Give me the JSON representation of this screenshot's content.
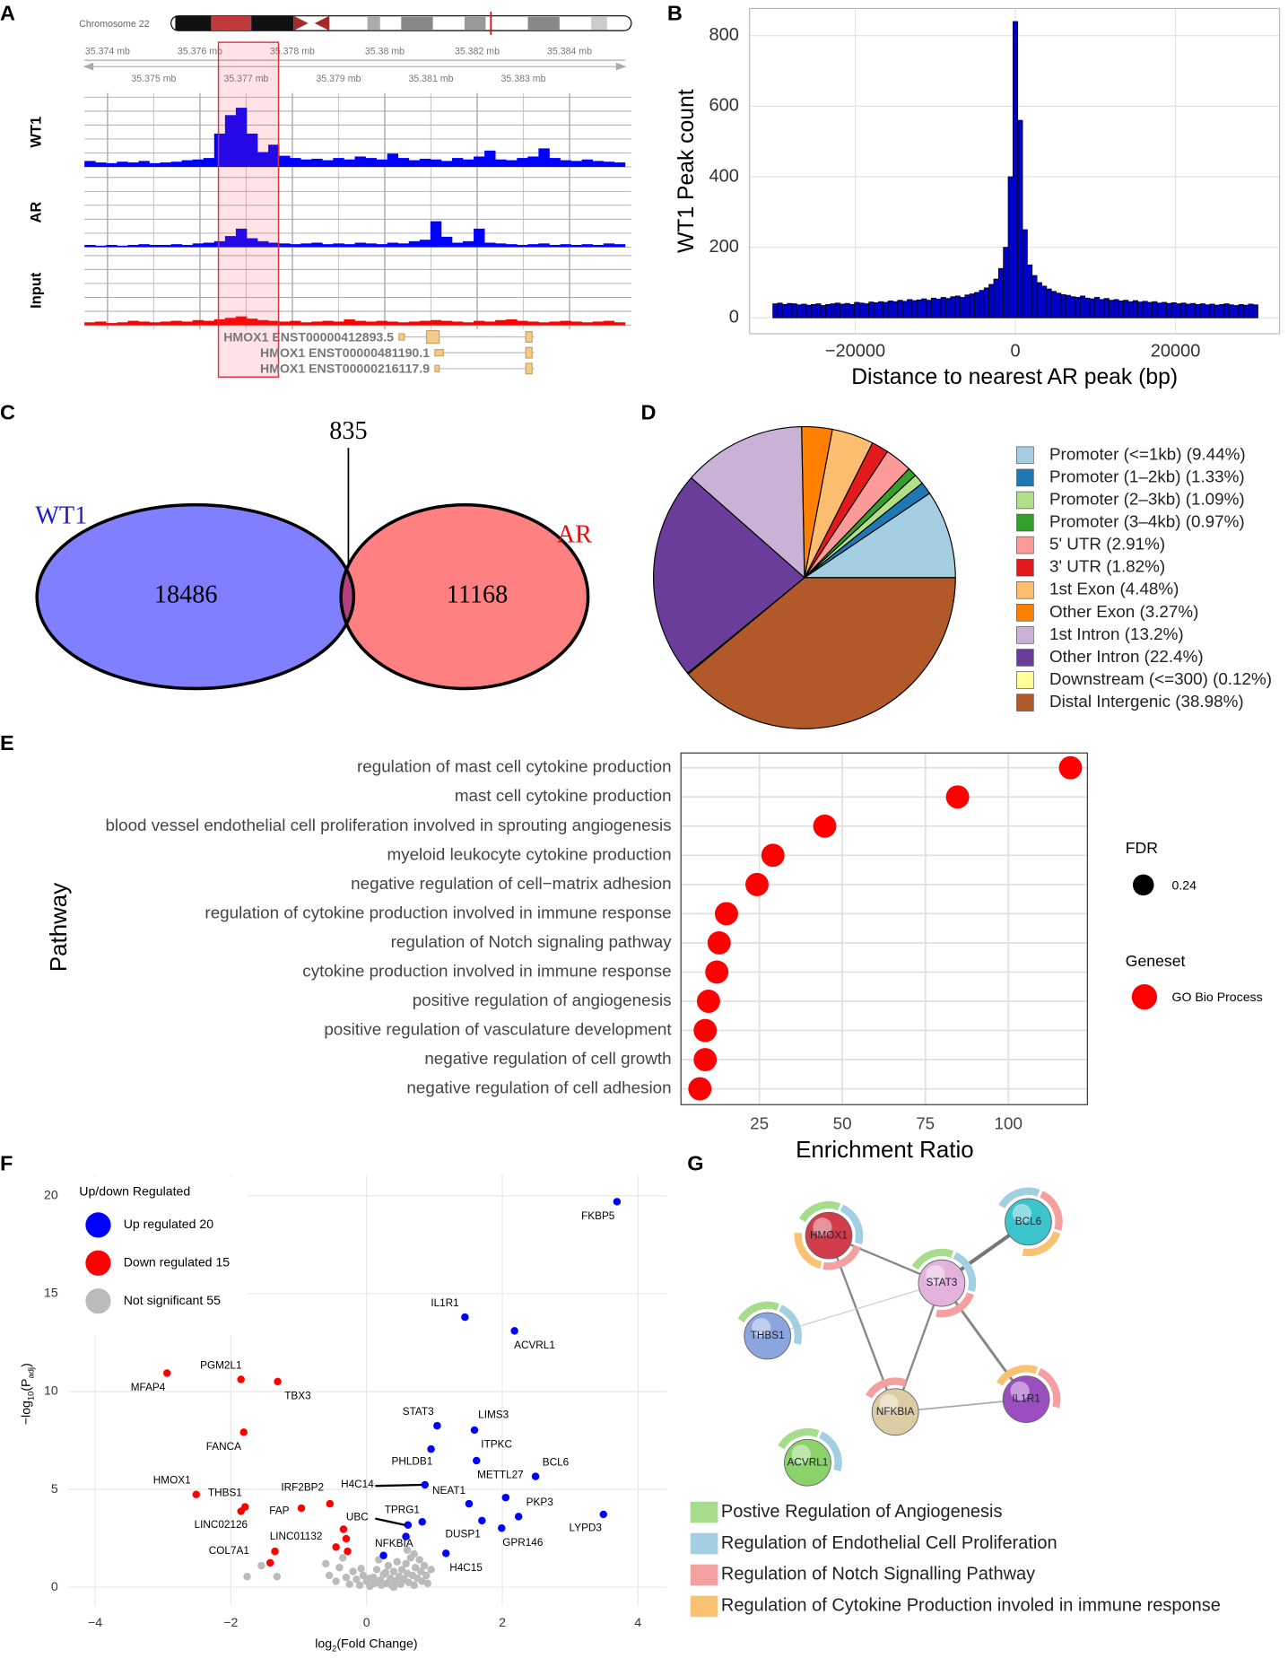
{
  "chart_data": [
    {
      "type": "genome_track",
      "panel_label": "A",
      "chromosome": "Chromosome 22",
      "xlim": [
        35.3735,
        35.3852
      ],
      "xticks": [
        {
          "value": 35.374,
          "label": "35.374 mb"
        },
        {
          "value": 35.376,
          "label": "35.376 mb"
        },
        {
          "value": 35.378,
          "label": "35.378 mb"
        },
        {
          "value": 35.38,
          "label": "35.38 mb"
        },
        {
          "value": 35.382,
          "label": "35.382 mb"
        },
        {
          "value": 35.384,
          "label": "35.384 mb"
        }
      ],
      "xticks_lower": [
        {
          "value": 35.375,
          "label": "35.375 mb"
        },
        {
          "value": 35.377,
          "label": "35.377 mb"
        },
        {
          "value": 35.379,
          "label": "35.379 mb"
        },
        {
          "value": 35.381,
          "label": "35.381 mb"
        },
        {
          "value": 35.383,
          "label": "35.383 mb"
        }
      ],
      "highlight": [
        35.3764,
        35.3777
      ],
      "ylim": [
        0,
        100
      ],
      "tracks": [
        {
          "name": "WT1",
          "color": "#0000ff",
          "values": [
            8,
            6,
            5,
            7,
            6,
            8,
            5,
            6,
            7,
            9,
            10,
            12,
            45,
            70,
            80,
            45,
            20,
            30,
            15,
            12,
            10,
            11,
            9,
            12,
            10,
            14,
            12,
            10,
            18,
            12,
            9,
            11,
            10,
            8,
            12,
            10,
            14,
            22,
            10,
            9,
            12,
            14,
            25,
            12,
            9,
            8,
            10,
            8,
            7,
            6
          ]
        },
        {
          "name": "AR",
          "color": "#0000ff",
          "values": [
            3,
            2,
            3,
            2,
            3,
            4,
            3,
            3,
            4,
            3,
            5,
            6,
            8,
            15,
            25,
            12,
            8,
            6,
            5,
            4,
            5,
            6,
            4,
            5,
            4,
            6,
            5,
            4,
            6,
            5,
            8,
            10,
            35,
            14,
            6,
            8,
            25,
            6,
            5,
            4,
            3,
            4,
            5,
            3,
            4,
            3,
            4,
            3,
            5,
            4
          ]
        },
        {
          "name": "Input",
          "color": "#ff0000",
          "values": [
            4,
            5,
            3,
            4,
            6,
            5,
            4,
            5,
            6,
            5,
            7,
            6,
            8,
            10,
            12,
            9,
            7,
            6,
            5,
            6,
            4,
            5,
            6,
            5,
            8,
            6,
            5,
            6,
            5,
            4,
            5,
            6,
            7,
            6,
            5,
            4,
            6,
            5,
            7,
            8,
            6,
            5,
            4,
            5,
            6,
            5,
            4,
            5,
            6,
            4
          ]
        }
      ],
      "transcripts": [
        "HMOX1 ENST00000412893.5",
        "HMOX1 ENST00000481190.1",
        "HMOX1 ENST00000216117.9"
      ]
    },
    {
      "type": "histogram",
      "panel_label": "B",
      "color": "#0000cc",
      "bins": [
        -30300,
        -29700,
        -29100,
        -28500,
        -27900,
        -27300,
        -26700,
        -26100,
        -25500,
        -24900,
        -24300,
        -23700,
        -23100,
        -22500,
        -21900,
        -21300,
        -20700,
        -20100,
        -19500,
        -18900,
        -18300,
        -17700,
        -17100,
        -16500,
        -15900,
        -15300,
        -14700,
        -14100,
        -13500,
        -12900,
        -12300,
        -11700,
        -11100,
        -10500,
        -9900,
        -9300,
        -8700,
        -8100,
        -7500,
        -6900,
        -6300,
        -5700,
        -5100,
        -4500,
        -3900,
        -3300,
        -2700,
        -2100,
        -1500,
        -900,
        -300,
        300,
        900,
        1500,
        2100,
        2700,
        3300,
        3900,
        4500,
        5100,
        5700,
        6300,
        6900,
        7500,
        8100,
        8700,
        9300,
        9900,
        10500,
        11100,
        11700,
        12300,
        12900,
        13500,
        14100,
        14700,
        15300,
        15900,
        16500,
        17100,
        17700,
        18300,
        18900,
        19500,
        20100,
        20700,
        21300,
        21900,
        22500,
        23100,
        23700,
        24300,
        24900,
        25500,
        26100,
        26700,
        27300,
        27900,
        28500,
        29100,
        29700,
        30300
      ],
      "counts": [
        40,
        42,
        38,
        41,
        40,
        37,
        39,
        36,
        38,
        40,
        35,
        38,
        40,
        42,
        39,
        41,
        38,
        44,
        42,
        40,
        45,
        43,
        46,
        44,
        48,
        46,
        50,
        47,
        52,
        49,
        51,
        54,
        50,
        56,
        53,
        58,
        55,
        60,
        62,
        58,
        65,
        68,
        72,
        78,
        85,
        95,
        110,
        140,
        200,
        400,
        840,
        560,
        250,
        150,
        120,
        100,
        90,
        82,
        75,
        70,
        66,
        64,
        60,
        58,
        62,
        56,
        54,
        58,
        52,
        55,
        50,
        52,
        48,
        50,
        46,
        49,
        45,
        47,
        44,
        46,
        42,
        44,
        41,
        43,
        40,
        42,
        39,
        41,
        38,
        40,
        37,
        39,
        36,
        38,
        40,
        37,
        35,
        38,
        36,
        39,
        37
      ],
      "xlim": [
        -33200,
        33000
      ],
      "ylim": [
        -45,
        877
      ],
      "xticks": [
        {
          "value": -20000,
          "label": "−20000"
        },
        0,
        20000
      ],
      "yticks": [
        0,
        200,
        400,
        600,
        800
      ],
      "grid": true,
      "x_label": "Distance to nearest AR peak (bp)",
      "y_label": "WT1 Peak count"
    },
    {
      "type": "venn",
      "panel_label": "C",
      "sets": [
        {
          "name": "WT1",
          "color": "#7f7fff",
          "label_color": "#1a1acc",
          "value": 18486
        },
        {
          "name": "AR",
          "color": "#ff8080",
          "label_color": "#e01010",
          "value": 11168
        }
      ],
      "intersection": 835,
      "intersection_color": "#b5407f"
    },
    {
      "type": "pie",
      "panel_label": "D",
      "categories": [
        "Promoter (<=1kb) (9.44%)",
        "Promoter (1–2kb) (1.33%)",
        "Promoter (2–3kb) (1.09%)",
        "Promoter (3–4kb) (0.97%)",
        "5' UTR (2.91%)",
        "3' UTR (1.82%)",
        "1st Exon (4.48%)",
        "Other Exon (3.27%)",
        "1st Intron (13.2%)",
        "Other Intron (22.4%)",
        "Downstream (<=300) (0.12%)",
        "Distal Intergenic (38.98%)"
      ],
      "values": [
        9.44,
        1.33,
        1.09,
        0.97,
        2.91,
        1.82,
        4.48,
        3.27,
        13.2,
        22.4,
        0.12,
        38.98
      ],
      "colors": [
        "#a6cee3",
        "#1f78b4",
        "#b2df8a",
        "#33a02c",
        "#fb9a99",
        "#e31a1c",
        "#fdbf6f",
        "#ff7f00",
        "#cab2d6",
        "#6a3d9a",
        "#ffff99",
        "#b15928"
      ]
    },
    {
      "type": "dot",
      "panel_label": "E",
      "color": "#ff0000",
      "categories": [
        "regulation of mast cell cytokine production",
        "mast cell cytokine production",
        "blood vessel endothelial cell proliferation involved in sprouting angiogenesis",
        "myeloid leukocyte cytokine production",
        "negative regulation of cell−matrix adhesion",
        "regulation of cytokine production involved in immune response",
        "regulation of Notch signaling pathway",
        "cytokine production involved in immune response",
        "positive regulation of angiogenesis",
        "positive regulation of vasculature development",
        "negative regulation of cell growth",
        "negative regulation of cell adhesion"
      ],
      "values": [
        118.7,
        84.7,
        44.7,
        29.1,
        24.3,
        15.1,
        12.9,
        12.2,
        9.7,
        8.7,
        8.7,
        7.1
      ],
      "xlim": [
        1.4,
        123.8
      ],
      "xticks": [
        25,
        50,
        75,
        100
      ],
      "grid": true,
      "x_label": "Enrichment Ratio",
      "y_label": "Pathway",
      "fdr_title": "FDR",
      "fdr": 0.24,
      "geneset_title": "Geneset",
      "geneset": "GO Bio Process"
    },
    {
      "type": "volcano",
      "panel_label": "F",
      "legend_title": "Up/down Regulated",
      "series": [
        {
          "name": "Up regulated 20",
          "color": "#0000ff",
          "x": [
            3.69,
            1.45,
            2.18,
            1.04,
            1.59,
            0.95,
            1.62,
            2.49,
            2.05,
            0.86,
            2.24,
            3.49,
            1.51,
            1.7,
            1.99,
            0.61,
            0.82,
            0.58,
            0.25,
            1.17
          ],
          "values": [
            19.7,
            13.8,
            13.1,
            8.25,
            8.03,
            7.06,
            6.47,
            5.66,
            4.58,
            5.23,
            3.61,
            3.72,
            4.26,
            3.4,
            3.02,
            3.18,
            3.34,
            2.59,
            1.62,
            1.73
          ],
          "labels": [
            "FKBP5",
            "IL1R1",
            "ACVRL1",
            "STAT3",
            "LIMS3",
            "PHLDB1",
            "ITPKC",
            "BCL6",
            "METTL27",
            "H4C14",
            "PKP3",
            "LYPD3",
            "NEAT1",
            "DUSP1",
            "GPR146",
            "UBC",
            "TPRG1",
            null,
            "NFKBIA",
            "H4C15"
          ]
        },
        {
          "name": "Down regulated 15",
          "color": "#ff0000",
          "x": [
            -2.94,
            -1.85,
            -1.31,
            -1.81,
            -2.51,
            -1.79,
            -1.85,
            -0.96,
            -0.54,
            -0.34,
            -0.3,
            -0.45,
            -0.28,
            -1.35,
            -1.42
          ],
          "values": [
            10.94,
            10.62,
            10.51,
            7.92,
            4.74,
            4.1,
            3.88,
            4.04,
            4.26,
            2.96,
            2.48,
            2.05,
            1.83,
            1.83,
            1.24
          ],
          "labels": [
            "MFAP4",
            "PGM2L1",
            "TBX3",
            "FANCA",
            "HMOX1",
            "THBS1",
            "LINC02126",
            "FAP",
            "IRF2BP2",
            null,
            null,
            null,
            null,
            "LINC01132",
            "COL7A1"
          ]
        },
        {
          "name": "Not significant 55",
          "color": "#bbbbbb",
          "x": [
            -1.76,
            -1.32,
            -1.55,
            -0.55,
            -0.45,
            -0.4,
            -0.3,
            -0.25,
            -0.2,
            -0.15,
            -0.1,
            -0.05,
            0,
            0.05,
            0.1,
            0.12,
            0.15,
            0.2,
            0.22,
            0.25,
            0.3,
            0.32,
            0.35,
            0.38,
            0.4,
            0.42,
            0.45,
            0.48,
            0.5,
            0.52,
            0.55,
            0.58,
            0.6,
            0.62,
            0.65,
            0.68,
            0.7,
            0.72,
            0.75,
            0.78,
            0.8,
            0.82,
            0.85,
            0.88,
            0.9,
            0.7,
            -0.6,
            -0.35,
            0.18,
            0.4,
            0.28,
            -0.08,
            0.95,
            0.6,
            0.05
          ],
          "values": [
            0.54,
            0.54,
            1.1,
            0.6,
            0.3,
            1.0,
            0.5,
            0.15,
            0.8,
            0.4,
            0.1,
            0.6,
            0.3,
            0.05,
            0.5,
            0.2,
            0.9,
            0.35,
            0.1,
            0.65,
            0.2,
            1.1,
            0.45,
            0.05,
            0.8,
            0.3,
            1.3,
            0.55,
            0.15,
            0.9,
            0.4,
            1.2,
            0.7,
            0.25,
            1.5,
            0.6,
            0.1,
            1.0,
            0.45,
            1.4,
            0.8,
            0.3,
            1.1,
            0.6,
            0.2,
            1.7,
            1.2,
            1.5,
            1.4,
            0,
            0.75,
            0.95,
            0.9,
            1.9,
            0.45
          ]
        }
      ],
      "xlim": [
        -4.39,
        4.43
      ],
      "ylim": [
        -0.92,
        21.1
      ],
      "xticks": [
        {
          "value": -4,
          "label": "−4"
        },
        {
          "value": -2,
          "label": "−2"
        },
        0,
        2,
        4
      ],
      "yticks": [
        0,
        5,
        10,
        15,
        20
      ],
      "grid": true,
      "x_label": [
        "log",
        "2",
        "(Fold Change)"
      ],
      "y_label": [
        "−log",
        "10",
        "(P",
        "adj",
        ")"
      ]
    }
  ],
  "network": {
    "panel_label": "G",
    "nodes": [
      "HMOX1",
      "STAT3",
      "BCL6",
      "THBS1",
      "NFKBIA",
      "IL1R1",
      "ACVRL1"
    ],
    "legend": [
      {
        "text": "Postive Regulation of Angiogenesis",
        "color": "#a6dc8c"
      },
      {
        "text": "Regulation of Endothelial Cell Proliferation",
        "color": "#a3cfe2"
      },
      {
        "text": "Regulation of Notch Signalling Pathway",
        "color": "#f5a0a0"
      },
      {
        "text": "Regulation of Cytokine Production involed in immune response",
        "color": "#f9c272"
      }
    ]
  }
}
